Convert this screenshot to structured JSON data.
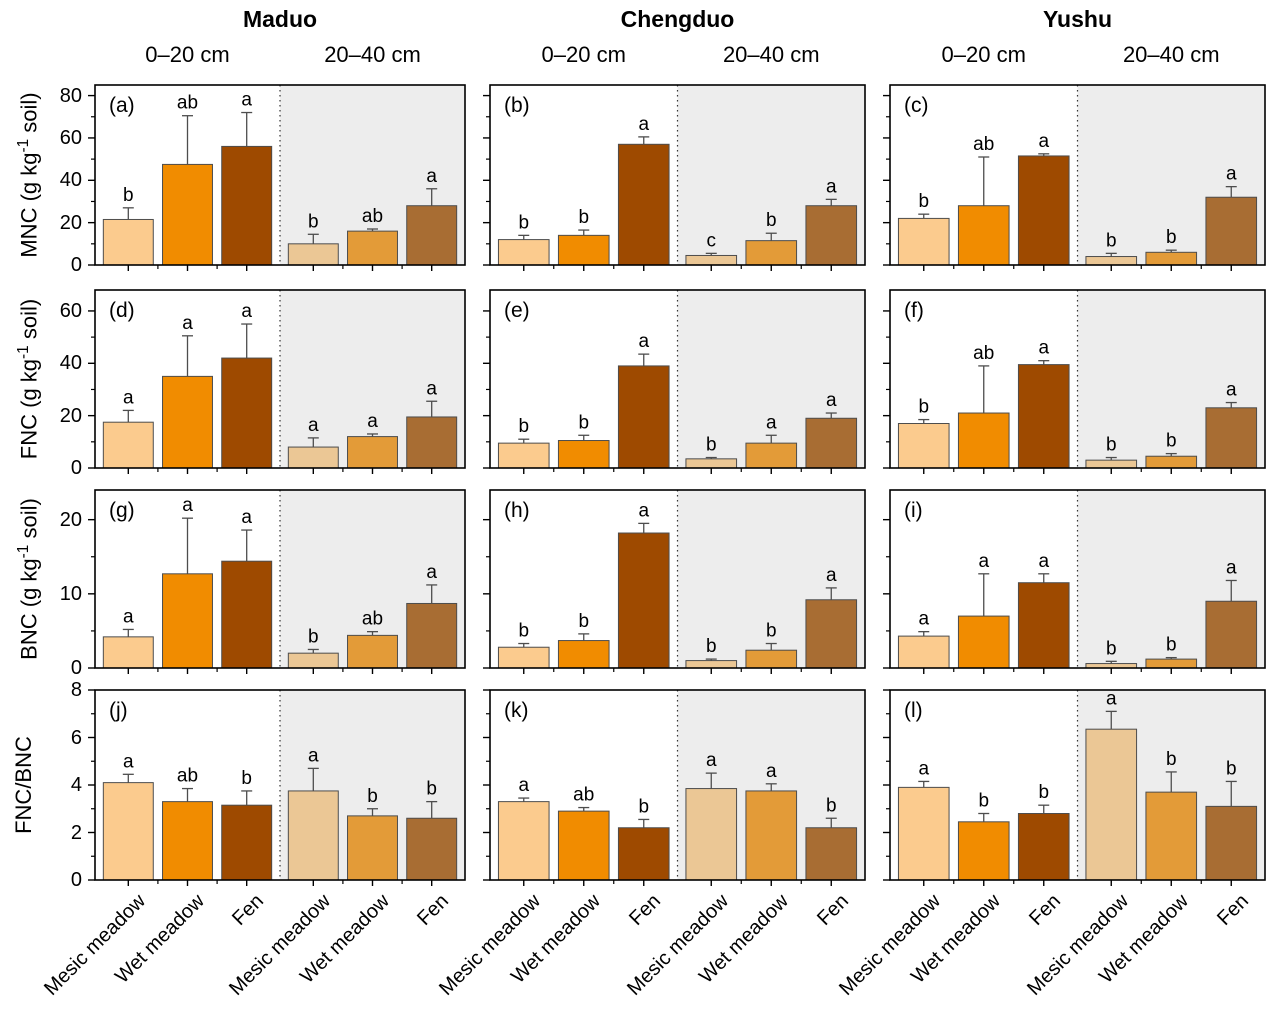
{
  "header": {
    "sites": [
      "Maduo",
      "Chengduo",
      "Yushu"
    ],
    "depth_labels": [
      "0–20 cm",
      "20–40 cm"
    ]
  },
  "x_axis": {
    "treatments": [
      "Mesic meadow",
      "Wet meadow",
      "Fen"
    ]
  },
  "colors": {
    "topsoil_bars": [
      "#FBCB8E",
      "#F18C00",
      "#9E4A00"
    ],
    "subsoil_bars": [
      "#EBC795",
      "#E39B38",
      "#A86D33"
    ],
    "subsoil_background": "#EDEDED",
    "bar_stroke": "#4D4D4D",
    "error_bar": "#4D4D4D",
    "axis": "#000000"
  },
  "chart_data": [
    {
      "type": "bar",
      "ylabel": "MNC (g kg-1 soil)",
      "ylabel_parts": {
        "pre": "MNC (g kg",
        "sup": "-1",
        "post": " soil)"
      },
      "ylim": [
        0,
        85
      ],
      "yticks": [
        0,
        20,
        40,
        60,
        80
      ],
      "minor_tick_step": 10,
      "panels": [
        {
          "tag": "(a)",
          "site": "Maduo",
          "groups": [
            {
              "depth": "0–20 cm",
              "shaded": false,
              "bars": [
                {
                  "treatment": "Mesic meadow",
                  "value": 21.5,
                  "err": 5.5,
                  "letter": "b"
                },
                {
                  "treatment": "Wet meadow",
                  "value": 47.5,
                  "err": 23,
                  "letter": "ab"
                },
                {
                  "treatment": "Fen",
                  "value": 56,
                  "err": 16,
                  "letter": "a"
                }
              ]
            },
            {
              "depth": "20–40 cm",
              "shaded": true,
              "bars": [
                {
                  "treatment": "Mesic meadow",
                  "value": 10,
                  "err": 4.5,
                  "letter": "b"
                },
                {
                  "treatment": "Wet meadow",
                  "value": 16,
                  "err": 1,
                  "letter": "ab"
                },
                {
                  "treatment": "Fen",
                  "value": 28,
                  "err": 8,
                  "letter": "a"
                }
              ]
            }
          ]
        },
        {
          "tag": "(b)",
          "site": "Chengduo",
          "groups": [
            {
              "depth": "0–20 cm",
              "shaded": false,
              "bars": [
                {
                  "treatment": "Mesic meadow",
                  "value": 12,
                  "err": 2,
                  "letter": "b"
                },
                {
                  "treatment": "Wet meadow",
                  "value": 14,
                  "err": 2.5,
                  "letter": "b"
                },
                {
                  "treatment": "Fen",
                  "value": 57,
                  "err": 3.5,
                  "letter": "a"
                }
              ]
            },
            {
              "depth": "20–40 cm",
              "shaded": true,
              "bars": [
                {
                  "treatment": "Mesic meadow",
                  "value": 4.5,
                  "err": 1,
                  "letter": "c"
                },
                {
                  "treatment": "Wet meadow",
                  "value": 11.5,
                  "err": 3.5,
                  "letter": "b"
                },
                {
                  "treatment": "Fen",
                  "value": 28,
                  "err": 3,
                  "letter": "a"
                }
              ]
            }
          ]
        },
        {
          "tag": "(c)",
          "site": "Yushu",
          "groups": [
            {
              "depth": "0–20 cm",
              "shaded": false,
              "bars": [
                {
                  "treatment": "Mesic meadow",
                  "value": 22,
                  "err": 2,
                  "letter": "b"
                },
                {
                  "treatment": "Wet meadow",
                  "value": 28,
                  "err": 23,
                  "letter": "ab"
                },
                {
                  "treatment": "Fen",
                  "value": 51.5,
                  "err": 1,
                  "letter": "a"
                }
              ]
            },
            {
              "depth": "20–40 cm",
              "shaded": true,
              "bars": [
                {
                  "treatment": "Mesic meadow",
                  "value": 4,
                  "err": 1.5,
                  "letter": "b"
                },
                {
                  "treatment": "Wet meadow",
                  "value": 6,
                  "err": 1,
                  "letter": "b"
                },
                {
                  "treatment": "Fen",
                  "value": 32,
                  "err": 5,
                  "letter": "a"
                }
              ]
            }
          ]
        }
      ]
    },
    {
      "type": "bar",
      "ylabel": "FNC (g kg-1 soil)",
      "ylabel_parts": {
        "pre": "FNC (g kg",
        "sup": "-1",
        "post": " soil)"
      },
      "ylim": [
        0,
        68
      ],
      "yticks": [
        0,
        20,
        40,
        60
      ],
      "minor_tick_step": 10,
      "panels": [
        {
          "tag": "(d)",
          "site": "Maduo",
          "groups": [
            {
              "depth": "0–20 cm",
              "shaded": false,
              "bars": [
                {
                  "treatment": "Mesic meadow",
                  "value": 17.5,
                  "err": 4.5,
                  "letter": "a"
                },
                {
                  "treatment": "Wet meadow",
                  "value": 35,
                  "err": 15.5,
                  "letter": "a"
                },
                {
                  "treatment": "Fen",
                  "value": 42,
                  "err": 13,
                  "letter": "a"
                }
              ]
            },
            {
              "depth": "20–40 cm",
              "shaded": true,
              "bars": [
                {
                  "treatment": "Mesic meadow",
                  "value": 8,
                  "err": 3.5,
                  "letter": "a"
                },
                {
                  "treatment": "Wet meadow",
                  "value": 12,
                  "err": 1,
                  "letter": "a"
                },
                {
                  "treatment": "Fen",
                  "value": 19.5,
                  "err": 6,
                  "letter": "a"
                }
              ]
            }
          ]
        },
        {
          "tag": "(e)",
          "site": "Chengduo",
          "groups": [
            {
              "depth": "0–20 cm",
              "shaded": false,
              "bars": [
                {
                  "treatment": "Mesic meadow",
                  "value": 9.5,
                  "err": 1.5,
                  "letter": "b"
                },
                {
                  "treatment": "Wet meadow",
                  "value": 10.5,
                  "err": 2,
                  "letter": "b"
                },
                {
                  "treatment": "Fen",
                  "value": 39,
                  "err": 4.5,
                  "letter": "a"
                }
              ]
            },
            {
              "depth": "20–40 cm",
              "shaded": true,
              "bars": [
                {
                  "treatment": "Mesic meadow",
                  "value": 3.5,
                  "err": 0.5,
                  "letter": "b"
                },
                {
                  "treatment": "Wet meadow",
                  "value": 9.5,
                  "err": 3,
                  "letter": "a"
                },
                {
                  "treatment": "Fen",
                  "value": 19,
                  "err": 2,
                  "letter": "a"
                }
              ]
            }
          ]
        },
        {
          "tag": "(f)",
          "site": "Yushu",
          "groups": [
            {
              "depth": "0–20 cm",
              "shaded": false,
              "bars": [
                {
                  "treatment": "Mesic meadow",
                  "value": 17,
                  "err": 1.5,
                  "letter": "b"
                },
                {
                  "treatment": "Wet meadow",
                  "value": 21,
                  "err": 18,
                  "letter": "ab"
                },
                {
                  "treatment": "Fen",
                  "value": 39.5,
                  "err": 1.5,
                  "letter": "a"
                }
              ]
            },
            {
              "depth": "20–40 cm",
              "shaded": true,
              "bars": [
                {
                  "treatment": "Mesic meadow",
                  "value": 3,
                  "err": 1,
                  "letter": "b"
                },
                {
                  "treatment": "Wet meadow",
                  "value": 4.5,
                  "err": 1,
                  "letter": "b"
                },
                {
                  "treatment": "Fen",
                  "value": 23,
                  "err": 2,
                  "letter": "a"
                }
              ]
            }
          ]
        }
      ]
    },
    {
      "type": "bar",
      "ylabel": "BNC (g kg-1 soil)",
      "ylabel_parts": {
        "pre": "BNC (g kg",
        "sup": "-1",
        "post": " soil)"
      },
      "ylim": [
        0,
        24
      ],
      "yticks": [
        0,
        10,
        20
      ],
      "minor_tick_step": 5,
      "panels": [
        {
          "tag": "(g)",
          "site": "Maduo",
          "groups": [
            {
              "depth": "0–20 cm",
              "shaded": false,
              "bars": [
                {
                  "treatment": "Mesic meadow",
                  "value": 4.2,
                  "err": 1,
                  "letter": "a"
                },
                {
                  "treatment": "Wet meadow",
                  "value": 12.7,
                  "err": 7.5,
                  "letter": "a"
                },
                {
                  "treatment": "Fen",
                  "value": 14.4,
                  "err": 4.2,
                  "letter": "a"
                }
              ]
            },
            {
              "depth": "20–40 cm",
              "shaded": true,
              "bars": [
                {
                  "treatment": "Mesic meadow",
                  "value": 2,
                  "err": 0.5,
                  "letter": "b"
                },
                {
                  "treatment": "Wet meadow",
                  "value": 4.4,
                  "err": 0.5,
                  "letter": "ab"
                },
                {
                  "treatment": "Fen",
                  "value": 8.7,
                  "err": 2.5,
                  "letter": "a"
                }
              ]
            }
          ]
        },
        {
          "tag": "(h)",
          "site": "Chengduo",
          "groups": [
            {
              "depth": "0–20 cm",
              "shaded": false,
              "bars": [
                {
                  "treatment": "Mesic meadow",
                  "value": 2.8,
                  "err": 0.5,
                  "letter": "b"
                },
                {
                  "treatment": "Wet meadow",
                  "value": 3.7,
                  "err": 0.9,
                  "letter": "b"
                },
                {
                  "treatment": "Fen",
                  "value": 18.2,
                  "err": 1.3,
                  "letter": "a"
                }
              ]
            },
            {
              "depth": "20–40 cm",
              "shaded": true,
              "bars": [
                {
                  "treatment": "Mesic meadow",
                  "value": 1,
                  "err": 0.2,
                  "letter": "b"
                },
                {
                  "treatment": "Wet meadow",
                  "value": 2.4,
                  "err": 0.9,
                  "letter": "b"
                },
                {
                  "treatment": "Fen",
                  "value": 9.2,
                  "err": 1.6,
                  "letter": "a"
                }
              ]
            }
          ]
        },
        {
          "tag": "(i)",
          "site": "Yushu",
          "groups": [
            {
              "depth": "0–20 cm",
              "shaded": false,
              "bars": [
                {
                  "treatment": "Mesic meadow",
                  "value": 4.3,
                  "err": 0.6,
                  "letter": "a"
                },
                {
                  "treatment": "Wet meadow",
                  "value": 7,
                  "err": 5.7,
                  "letter": "a"
                },
                {
                  "treatment": "Fen",
                  "value": 11.5,
                  "err": 1.2,
                  "letter": "a"
                }
              ]
            },
            {
              "depth": "20–40 cm",
              "shaded": true,
              "bars": [
                {
                  "treatment": "Mesic meadow",
                  "value": 0.6,
                  "err": 0.3,
                  "letter": "b"
                },
                {
                  "treatment": "Wet meadow",
                  "value": 1.2,
                  "err": 0.2,
                  "letter": "b"
                },
                {
                  "treatment": "Fen",
                  "value": 9,
                  "err": 2.8,
                  "letter": "a"
                }
              ]
            }
          ]
        }
      ]
    },
    {
      "type": "bar",
      "ylabel": "FNC/BNC",
      "ylabel_parts": {
        "pre": "FNC/BNC",
        "sup": "",
        "post": ""
      },
      "ylim": [
        0,
        8
      ],
      "yticks": [
        0,
        2,
        4,
        6,
        8
      ],
      "minor_tick_step": 1,
      "panels": [
        {
          "tag": "(j)",
          "site": "Maduo",
          "groups": [
            {
              "depth": "0–20 cm",
              "shaded": false,
              "bars": [
                {
                  "treatment": "Mesic meadow",
                  "value": 4.1,
                  "err": 0.35,
                  "letter": "a"
                },
                {
                  "treatment": "Wet meadow",
                  "value": 3.3,
                  "err": 0.55,
                  "letter": "ab"
                },
                {
                  "treatment": "Fen",
                  "value": 3.15,
                  "err": 0.6,
                  "letter": "b"
                }
              ]
            },
            {
              "depth": "20–40 cm",
              "shaded": true,
              "bars": [
                {
                  "treatment": "Mesic meadow",
                  "value": 3.75,
                  "err": 0.95,
                  "letter": "a"
                },
                {
                  "treatment": "Wet meadow",
                  "value": 2.7,
                  "err": 0.3,
                  "letter": "b"
                },
                {
                  "treatment": "Fen",
                  "value": 2.6,
                  "err": 0.7,
                  "letter": "b"
                }
              ]
            }
          ]
        },
        {
          "tag": "(k)",
          "site": "Chengduo",
          "groups": [
            {
              "depth": "0–20 cm",
              "shaded": false,
              "bars": [
                {
                  "treatment": "Mesic meadow",
                  "value": 3.3,
                  "err": 0.15,
                  "letter": "a"
                },
                {
                  "treatment": "Wet meadow",
                  "value": 2.9,
                  "err": 0.15,
                  "letter": "ab"
                },
                {
                  "treatment": "Fen",
                  "value": 2.2,
                  "err": 0.35,
                  "letter": "b"
                }
              ]
            },
            {
              "depth": "20–40 cm",
              "shaded": true,
              "bars": [
                {
                  "treatment": "Mesic meadow",
                  "value": 3.85,
                  "err": 0.65,
                  "letter": "a"
                },
                {
                  "treatment": "Wet meadow",
                  "value": 3.75,
                  "err": 0.3,
                  "letter": "a"
                },
                {
                  "treatment": "Fen",
                  "value": 2.2,
                  "err": 0.4,
                  "letter": "b"
                }
              ]
            }
          ]
        },
        {
          "tag": "(l)",
          "site": "Yushu",
          "groups": [
            {
              "depth": "0–20 cm",
              "shaded": false,
              "bars": [
                {
                  "treatment": "Mesic meadow",
                  "value": 3.9,
                  "err": 0.25,
                  "letter": "a"
                },
                {
                  "treatment": "Wet meadow",
                  "value": 2.45,
                  "err": 0.35,
                  "letter": "b"
                },
                {
                  "treatment": "Fen",
                  "value": 2.8,
                  "err": 0.35,
                  "letter": "b"
                }
              ]
            },
            {
              "depth": "20–40 cm",
              "shaded": true,
              "bars": [
                {
                  "treatment": "Mesic meadow",
                  "value": 6.35,
                  "err": 0.75,
                  "letter": "a"
                },
                {
                  "treatment": "Wet meadow",
                  "value": 3.7,
                  "err": 0.85,
                  "letter": "b"
                },
                {
                  "treatment": "Fen",
                  "value": 3.1,
                  "err": 1.05,
                  "letter": "b"
                }
              ]
            }
          ]
        }
      ]
    }
  ]
}
